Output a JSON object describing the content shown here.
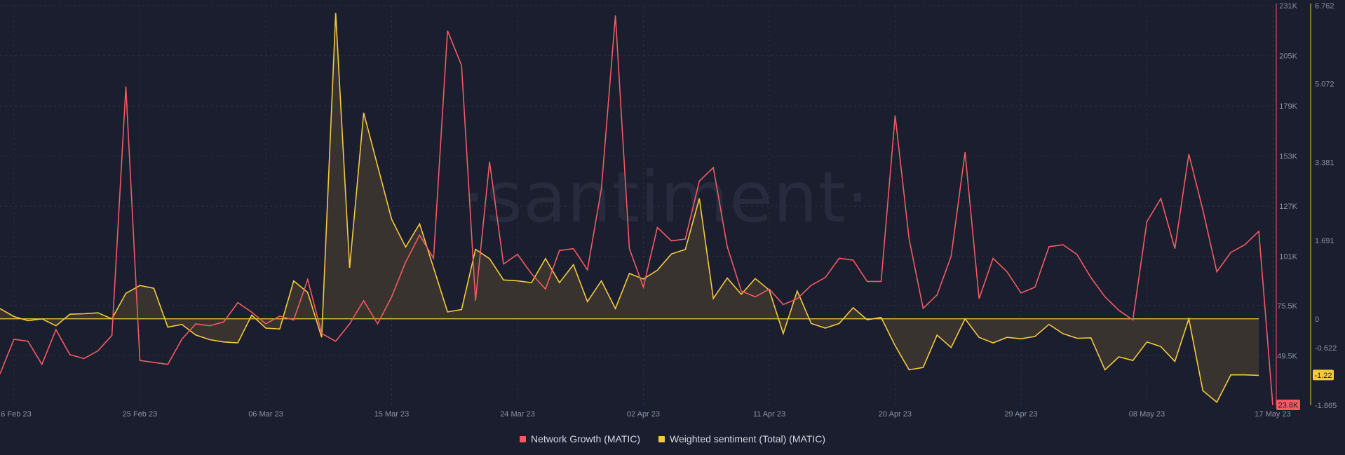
{
  "watermark": "·santiment·",
  "colors": {
    "background": "#1b1e2e",
    "network_growth": "#f25b63",
    "sentiment": "#f4c940",
    "sentiment_fill": "#3d372f",
    "axis_text": "#8b93a7",
    "grid": "#2a2e40"
  },
  "chart_data": {
    "type": "line",
    "x_tick_labels": [
      "16 Feb 23",
      "25 Feb 23",
      "06 Mar 23",
      "15 Mar 23",
      "24 Mar 23",
      "02 Apr 23",
      "11 Apr 23",
      "20 Apr 23",
      "29 Apr 23",
      "08 May 23",
      "17 May 23"
    ],
    "x_range": [
      "2023-02-15",
      "2023-05-17"
    ],
    "left_axis": {
      "series": "Network Growth (MATIC)",
      "ylim": [
        23800,
        231000
      ],
      "tick_labels": [
        "231K",
        "205K",
        "179K",
        "153K",
        "127K",
        "101K",
        "75.5K",
        "49.5K"
      ],
      "current_value_label": "23.8K"
    },
    "right_axis": {
      "series": "Weighted sentiment (Total) (MATIC)",
      "ylim": [
        -1.865,
        6.762
      ],
      "tick_labels": [
        "6.762",
        "5.072",
        "3.381",
        "1.691",
        "0",
        "-0.622",
        "-1.865"
      ],
      "current_value_label": "-1.22"
    },
    "series": [
      {
        "name": "Network Growth (MATIC)",
        "axis": "left",
        "points": [
          [
            "2023-02-15",
            40000
          ],
          [
            "2023-02-16",
            58000
          ],
          [
            "2023-02-17",
            57000
          ],
          [
            "2023-02-18",
            45000
          ],
          [
            "2023-02-19",
            63000
          ],
          [
            "2023-02-20",
            50000
          ],
          [
            "2023-02-21",
            48000
          ],
          [
            "2023-02-22",
            52000
          ],
          [
            "2023-02-23",
            60000
          ],
          [
            "2023-02-24",
            189000
          ],
          [
            "2023-02-25",
            47000
          ],
          [
            "2023-02-26",
            46000
          ],
          [
            "2023-02-27",
            45000
          ],
          [
            "2023-02-28",
            58000
          ],
          [
            "2023-03-01",
            66000
          ],
          [
            "2023-03-02",
            65000
          ],
          [
            "2023-03-03",
            67000
          ],
          [
            "2023-03-04",
            77000
          ],
          [
            "2023-03-05",
            72000
          ],
          [
            "2023-03-06",
            66000
          ],
          [
            "2023-03-07",
            70000
          ],
          [
            "2023-03-08",
            68000
          ],
          [
            "2023-03-09",
            89000
          ],
          [
            "2023-03-10",
            61000
          ],
          [
            "2023-03-11",
            57000
          ],
          [
            "2023-03-12",
            66000
          ],
          [
            "2023-03-13",
            78000
          ],
          [
            "2023-03-14",
            66000
          ],
          [
            "2023-03-15",
            80000
          ],
          [
            "2023-03-16",
            98000
          ],
          [
            "2023-03-17",
            112000
          ],
          [
            "2023-03-18",
            100000
          ],
          [
            "2023-03-19",
            218000
          ],
          [
            "2023-03-20",
            200000
          ],
          [
            "2023-03-21",
            78000
          ],
          [
            "2023-03-22",
            150000
          ],
          [
            "2023-03-23",
            97000
          ],
          [
            "2023-03-24",
            102000
          ],
          [
            "2023-03-25",
            92000
          ],
          [
            "2023-03-26",
            84000
          ],
          [
            "2023-03-27",
            104000
          ],
          [
            "2023-03-28",
            105000
          ],
          [
            "2023-03-29",
            94000
          ],
          [
            "2023-03-30",
            136000
          ],
          [
            "2023-03-31",
            226000
          ],
          [
            "2023-04-01",
            105000
          ],
          [
            "2023-04-02",
            85000
          ],
          [
            "2023-04-03",
            116000
          ],
          [
            "2023-04-04",
            109000
          ],
          [
            "2023-04-05",
            110000
          ],
          [
            "2023-04-06",
            140000
          ],
          [
            "2023-04-07",
            147000
          ],
          [
            "2023-04-08",
            106000
          ],
          [
            "2023-04-09",
            83000
          ],
          [
            "2023-04-10",
            80000
          ],
          [
            "2023-04-11",
            84000
          ],
          [
            "2023-04-12",
            76000
          ],
          [
            "2023-04-13",
            79000
          ],
          [
            "2023-04-14",
            86000
          ],
          [
            "2023-04-15",
            90000
          ],
          [
            "2023-04-16",
            100000
          ],
          [
            "2023-04-17",
            99000
          ],
          [
            "2023-04-18",
            88000
          ],
          [
            "2023-04-19",
            88000
          ],
          [
            "2023-04-20",
            174000
          ],
          [
            "2023-04-21",
            110000
          ],
          [
            "2023-04-22",
            74000
          ],
          [
            "2023-04-23",
            81000
          ],
          [
            "2023-04-24",
            101000
          ],
          [
            "2023-04-25",
            155000
          ],
          [
            "2023-04-26",
            79000
          ],
          [
            "2023-04-27",
            100000
          ],
          [
            "2023-04-28",
            93000
          ],
          [
            "2023-04-29",
            82000
          ],
          [
            "2023-04-30",
            85000
          ],
          [
            "2023-05-01",
            106000
          ],
          [
            "2023-05-02",
            107000
          ],
          [
            "2023-05-03",
            102000
          ],
          [
            "2023-05-04",
            90000
          ],
          [
            "2023-05-05",
            80000
          ],
          [
            "2023-05-06",
            73000
          ],
          [
            "2023-05-07",
            68000
          ],
          [
            "2023-05-08",
            119000
          ],
          [
            "2023-05-09",
            131000
          ],
          [
            "2023-05-10",
            105000
          ],
          [
            "2023-05-11",
            154000
          ],
          [
            "2023-05-12",
            125000
          ],
          [
            "2023-05-13",
            93000
          ],
          [
            "2023-05-14",
            103000
          ],
          [
            "2023-05-15",
            107000
          ],
          [
            "2023-05-16",
            114000
          ],
          [
            "2023-05-17",
            23800
          ]
        ]
      },
      {
        "name": "Weighted sentiment (Total) (MATIC)",
        "axis": "right",
        "points": [
          [
            "2023-02-15",
            0.22
          ],
          [
            "2023-02-16",
            0.05
          ],
          [
            "2023-02-17",
            -0.04
          ],
          [
            "2023-02-18",
            0.0
          ],
          [
            "2023-02-19",
            -0.15
          ],
          [
            "2023-02-20",
            0.1
          ],
          [
            "2023-02-21",
            0.11
          ],
          [
            "2023-02-22",
            0.13
          ],
          [
            "2023-02-23",
            0.0
          ],
          [
            "2023-02-24",
            0.55
          ],
          [
            "2023-02-25",
            0.72
          ],
          [
            "2023-02-26",
            0.66
          ],
          [
            "2023-02-27",
            -0.18
          ],
          [
            "2023-02-28",
            -0.12
          ],
          [
            "2023-03-01",
            -0.35
          ],
          [
            "2023-03-02",
            -0.45
          ],
          [
            "2023-03-03",
            -0.5
          ],
          [
            "2023-03-04",
            -0.52
          ],
          [
            "2023-03-05",
            0.08
          ],
          [
            "2023-03-06",
            -0.2
          ],
          [
            "2023-03-07",
            -0.22
          ],
          [
            "2023-03-08",
            0.82
          ],
          [
            "2023-03-09",
            0.57
          ],
          [
            "2023-03-10",
            -0.4
          ],
          [
            "2023-03-11",
            6.6
          ],
          [
            "2023-03-12",
            1.1
          ],
          [
            "2023-03-13",
            4.45
          ],
          [
            "2023-03-14",
            3.3
          ],
          [
            "2023-03-15",
            2.15
          ],
          [
            "2023-03-16",
            1.55
          ],
          [
            "2023-03-17",
            2.05
          ],
          [
            "2023-03-18",
            1.1
          ],
          [
            "2023-03-19",
            0.15
          ],
          [
            "2023-03-20",
            0.2
          ],
          [
            "2023-03-21",
            1.5
          ],
          [
            "2023-03-22",
            1.3
          ],
          [
            "2023-03-23",
            0.84
          ],
          [
            "2023-03-24",
            0.82
          ],
          [
            "2023-03-25",
            0.78
          ],
          [
            "2023-03-26",
            1.3
          ],
          [
            "2023-03-27",
            0.78
          ],
          [
            "2023-03-28",
            1.17
          ],
          [
            "2023-03-29",
            0.37
          ],
          [
            "2023-03-30",
            0.82
          ],
          [
            "2023-03-31",
            0.22
          ],
          [
            "2023-04-01",
            0.98
          ],
          [
            "2023-04-02",
            0.86
          ],
          [
            "2023-04-03",
            1.05
          ],
          [
            "2023-04-04",
            1.4
          ],
          [
            "2023-04-05",
            1.5
          ],
          [
            "2023-04-06",
            2.6
          ],
          [
            "2023-04-07",
            0.44
          ],
          [
            "2023-04-08",
            0.88
          ],
          [
            "2023-04-09",
            0.53
          ],
          [
            "2023-04-10",
            0.87
          ],
          [
            "2023-04-11",
            0.62
          ],
          [
            "2023-04-12",
            -0.32
          ],
          [
            "2023-04-13",
            0.6
          ],
          [
            "2023-04-14",
            -0.1
          ],
          [
            "2023-04-15",
            -0.2
          ],
          [
            "2023-04-16",
            -0.1
          ],
          [
            "2023-04-17",
            0.24
          ],
          [
            "2023-04-18",
            -0.02
          ],
          [
            "2023-04-19",
            0.03
          ],
          [
            "2023-04-20",
            -0.58
          ],
          [
            "2023-04-21",
            -1.1
          ],
          [
            "2023-04-22",
            -1.05
          ],
          [
            "2023-04-23",
            -0.35
          ],
          [
            "2023-04-24",
            -0.62
          ],
          [
            "2023-04-25",
            0.0
          ],
          [
            "2023-04-26",
            -0.4
          ],
          [
            "2023-04-27",
            -0.52
          ],
          [
            "2023-04-28",
            -0.4
          ],
          [
            "2023-04-29",
            -0.43
          ],
          [
            "2023-04-30",
            -0.38
          ],
          [
            "2023-05-01",
            -0.12
          ],
          [
            "2023-05-02",
            -0.32
          ],
          [
            "2023-05-03",
            -0.42
          ],
          [
            "2023-05-04",
            -0.41
          ],
          [
            "2023-05-05",
            -1.1
          ],
          [
            "2023-05-06",
            -0.82
          ],
          [
            "2023-05-07",
            -0.9
          ],
          [
            "2023-05-08",
            -0.5
          ],
          [
            "2023-05-09",
            -0.6
          ],
          [
            "2023-05-10",
            -0.92
          ],
          [
            "2023-05-11",
            0.0
          ],
          [
            "2023-05-12",
            -1.55
          ],
          [
            "2023-05-13",
            -1.8
          ],
          [
            "2023-05-14",
            -1.21
          ],
          [
            "2023-05-15",
            -1.21
          ],
          [
            "2023-05-16",
            -1.22
          ]
        ]
      }
    ],
    "legend_placement": "bottom-center",
    "grid": true
  },
  "legend": [
    {
      "label": "Network Growth (MATIC)",
      "color": "#f25b63"
    },
    {
      "label": "Weighted sentiment (Total) (MATIC)",
      "color": "#f4c940"
    }
  ]
}
